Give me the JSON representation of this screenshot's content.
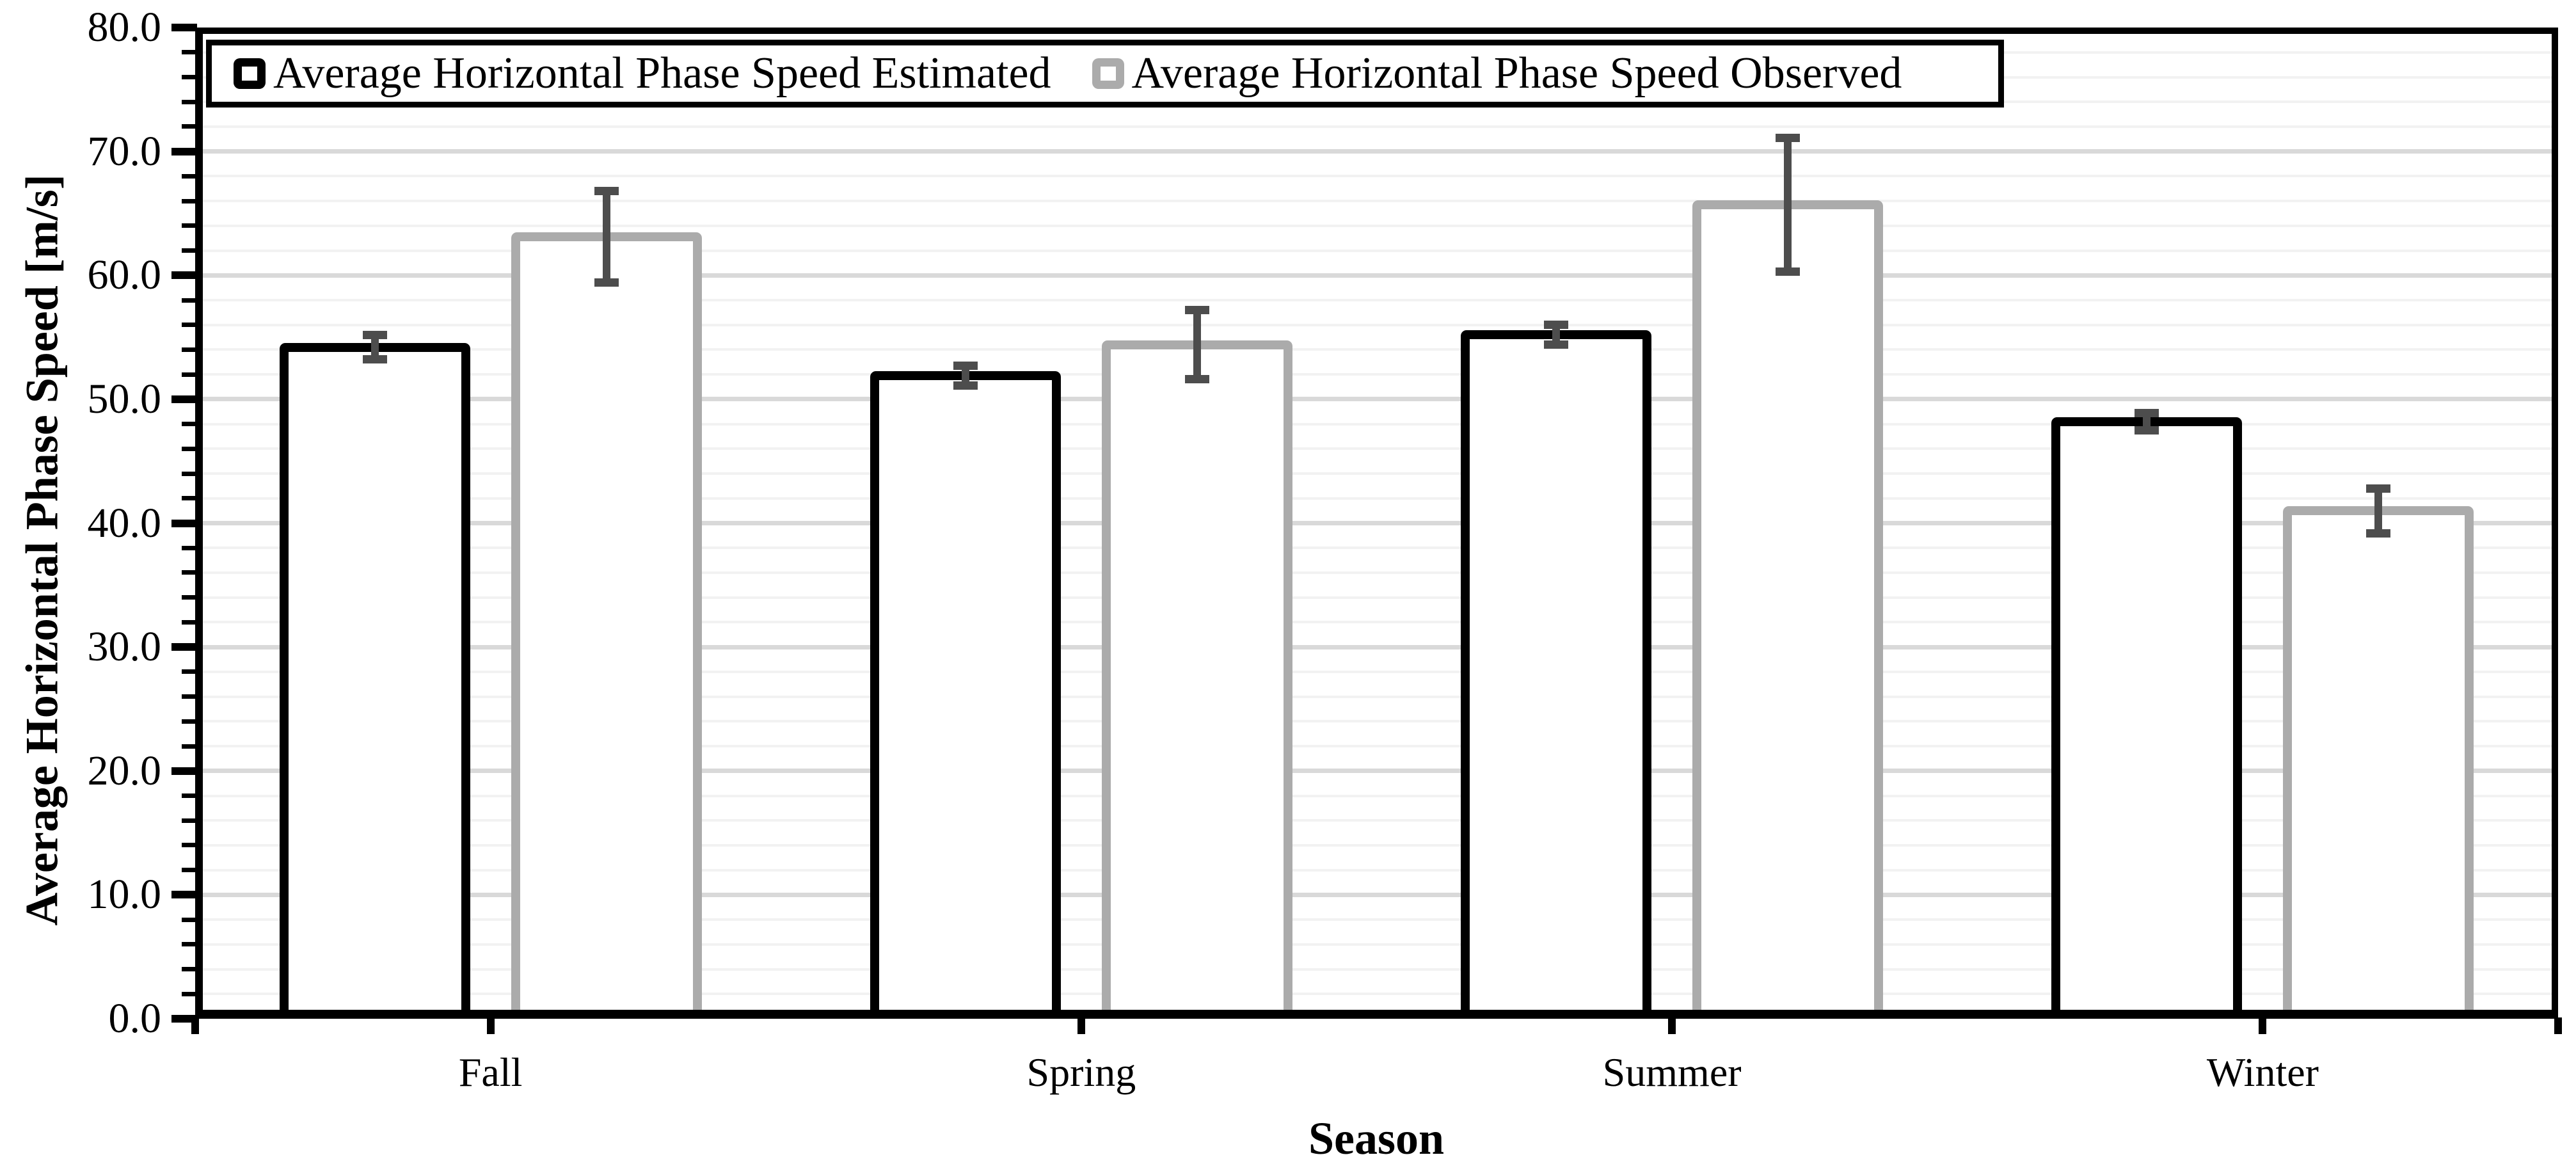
{
  "chart_data": {
    "type": "bar",
    "title": "",
    "xlabel": "Season",
    "ylabel": "Average Horizontal Phase Speed [m/s]",
    "categories": [
      "Fall",
      "Spring",
      "Summer",
      "Winter"
    ],
    "series": [
      {
        "name": "Average Horizontal Phase Speed Estimated",
        "outline_color": "#000000",
        "fill_color": "#ffffff",
        "values": [
          54.2,
          51.9,
          55.2,
          48.2
        ],
        "error_bars": [
          1.0,
          0.8,
          0.8,
          0.7
        ]
      },
      {
        "name": "Average Horizontal Phase Speed Observed",
        "outline_color": "#ABABAB",
        "fill_color": "#ffffff",
        "values": [
          63.1,
          54.4,
          65.7,
          41.0
        ],
        "error_bars": [
          3.7,
          2.8,
          5.4,
          1.8
        ]
      }
    ],
    "ylim": [
      0,
      80
    ],
    "y_major_step": 10,
    "y_minor_step": 2,
    "y_tick_labels": [
      "0.0",
      "10.0",
      "20.0",
      "30.0",
      "40.0",
      "50.0",
      "60.0",
      "70.0",
      "80.0"
    ],
    "grid": "horizontal, minor + major, on",
    "legend_position": "top-left inside, boxed",
    "error_bar_color": "#4D4D4D",
    "axis_color": "#000000",
    "gridline_major_color": "#D9D9D9",
    "gridline_minor_color": "#F2F2F2"
  }
}
